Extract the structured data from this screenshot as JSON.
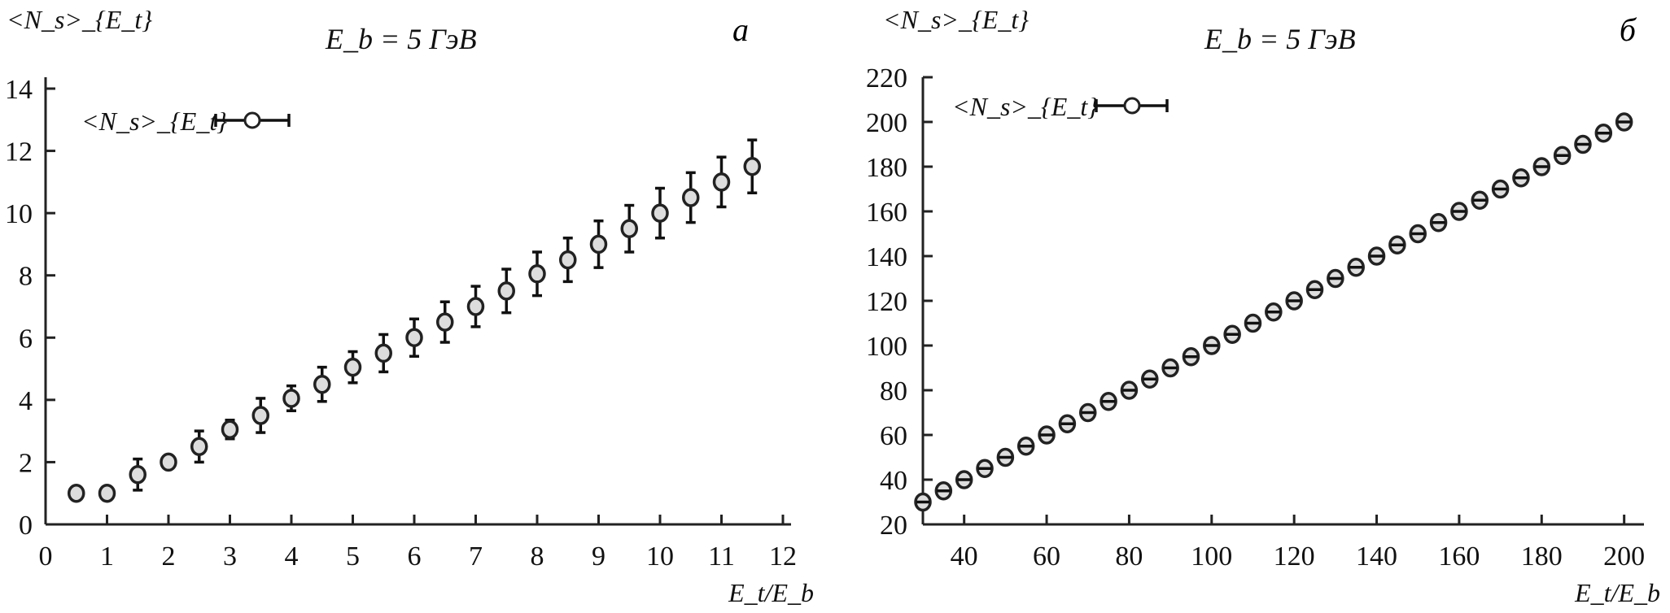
{
  "chart_data": [
    {
      "type": "scatter",
      "panel_label": "а",
      "title": "E_b = 5 ГэВ",
      "title_parts": {
        "var": "E",
        "sub": "b",
        "rest": " = 5 ГэВ"
      },
      "ylabel": "<N_s>_{E_t}",
      "xlabel": "E_t/E_b",
      "legend": {
        "label": "<N_s>_{E_t}",
        "placement": "top-left"
      },
      "xlim": [
        0,
        12
      ],
      "ylim": [
        0,
        14
      ],
      "xticks": [
        0,
        1,
        2,
        3,
        4,
        5,
        6,
        7,
        8,
        9,
        10,
        11,
        12
      ],
      "yticks": [
        0,
        2,
        4,
        6,
        8,
        10,
        12,
        14
      ],
      "grid": false,
      "series": [
        {
          "name": "<N_s>_{E_t}",
          "x": [
            0.5,
            1,
            1.5,
            2,
            2.5,
            3,
            3.5,
            4,
            4.5,
            5,
            5.5,
            6,
            6.5,
            7,
            7.5,
            8,
            8.5,
            9,
            9.5,
            10,
            10.5,
            11,
            11.5
          ],
          "y": [
            1,
            1,
            1.6,
            2,
            2.5,
            3.05,
            3.5,
            4.05,
            4.5,
            5.05,
            5.5,
            6,
            6.5,
            7,
            7.5,
            8.05,
            8.5,
            9,
            9.5,
            10,
            10.5,
            11,
            11.5
          ],
          "yerr": [
            0.05,
            0.05,
            0.5,
            0.1,
            0.5,
            0.3,
            0.55,
            0.4,
            0.55,
            0.5,
            0.6,
            0.6,
            0.65,
            0.65,
            0.7,
            0.7,
            0.7,
            0.75,
            0.75,
            0.8,
            0.8,
            0.8,
            0.85
          ]
        }
      ]
    },
    {
      "type": "scatter",
      "panel_label": "б",
      "title": "E_b = 5 ГэВ",
      "title_parts": {
        "var": "E",
        "sub": "b",
        "rest": " = 5 ГэВ"
      },
      "ylabel": "<N_s>_{E_t}",
      "xlabel": "E_t/E_b",
      "legend": {
        "label": "<N_s>_{E_t}",
        "placement": "top-left"
      },
      "xlim": [
        30,
        205
      ],
      "ylim": [
        20,
        220
      ],
      "xticks": [
        40,
        60,
        80,
        100,
        120,
        140,
        160,
        180,
        200
      ],
      "yticks": [
        20,
        40,
        60,
        80,
        100,
        120,
        140,
        160,
        180,
        200,
        220
      ],
      "grid": false,
      "series": [
        {
          "name": "<N_s>_{E_t}",
          "x": [
            30,
            35,
            40,
            45,
            50,
            55,
            60,
            65,
            70,
            75,
            80,
            85,
            90,
            95,
            100,
            105,
            110,
            115,
            120,
            125,
            130,
            135,
            140,
            145,
            150,
            155,
            160,
            165,
            170,
            175,
            180,
            185,
            190,
            195,
            200
          ],
          "y": [
            30,
            35,
            40,
            45,
            50,
            55,
            60,
            65,
            70,
            75,
            80,
            85,
            90,
            95,
            100,
            105,
            110,
            115,
            120,
            125,
            130,
            135,
            140,
            145,
            150,
            155,
            160,
            165,
            170,
            175,
            180,
            185,
            190,
            195,
            200
          ],
          "yerr": [
            1.5,
            1.5,
            1.5,
            1.5,
            1.5,
            1.5,
            1.5,
            1.5,
            1.5,
            1.5,
            1.5,
            1.5,
            1.5,
            1.5,
            2,
            2,
            2,
            2,
            2,
            2,
            2,
            2,
            2,
            2,
            2,
            2,
            2,
            2,
            2,
            2,
            2,
            2,
            2,
            2,
            2
          ]
        }
      ]
    }
  ]
}
